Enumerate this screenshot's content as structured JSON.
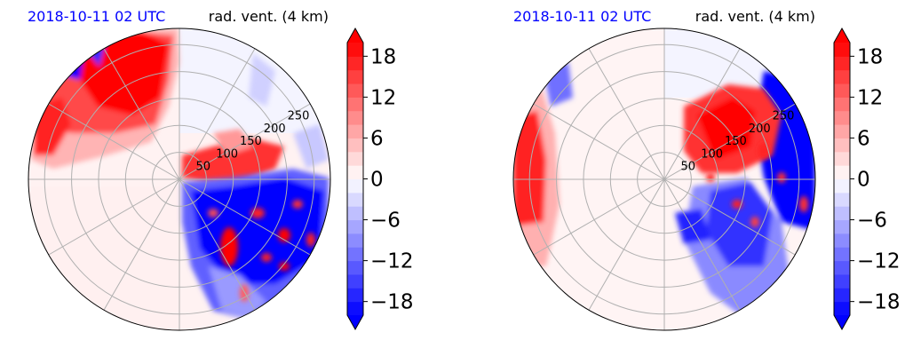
{
  "panels": [
    {
      "title_left": "2018-10-11 02 UTC",
      "title_right": "rad. vent. (4 km)"
    },
    {
      "title_left": "2018-10-11 02 UTC",
      "title_right": "rad. vent. (4 km)"
    }
  ],
  "colors": {
    "title_left": "#0000ff",
    "title_right": "#000000",
    "positive": "#ff0000",
    "negative": "#0000ff",
    "zero": "#ffffff",
    "grid": "#b0b0b0"
  },
  "chart_data": [
    {
      "type": "polar-contourf",
      "field": "radial velocity",
      "range_ring_labels": [
        "50",
        "100",
        "150",
        "200",
        "250"
      ],
      "range_rings_km": [
        50,
        100,
        150,
        200,
        250
      ],
      "max_range_km": 280,
      "azimuth_grid_step_deg": 30,
      "colorbar": {
        "ticks": [
          -18,
          -12,
          -6,
          0,
          6,
          12,
          18
        ],
        "tick_labels": [
          "−18",
          "−12",
          "−6",
          "0",
          "6",
          "12",
          "18"
        ],
        "vmin": -20,
        "vmax": 20,
        "levels_step": 2,
        "extend": "both",
        "cmap": "bwr"
      }
    },
    {
      "type": "polar-contourf",
      "field": "radial velocity",
      "range_ring_labels": [
        "50",
        "100",
        "150",
        "200",
        "250"
      ],
      "range_rings_km": [
        50,
        100,
        150,
        200,
        250
      ],
      "max_range_km": 280,
      "azimuth_grid_step_deg": 30,
      "colorbar": {
        "ticks": [
          -18,
          -12,
          -6,
          0,
          6,
          12,
          18
        ],
        "tick_labels": [
          "−18",
          "−12",
          "−6",
          "0",
          "6",
          "12",
          "18"
        ],
        "vmin": -20,
        "vmax": 20,
        "levels_step": 2,
        "extend": "both",
        "cmap": "bwr"
      }
    }
  ]
}
